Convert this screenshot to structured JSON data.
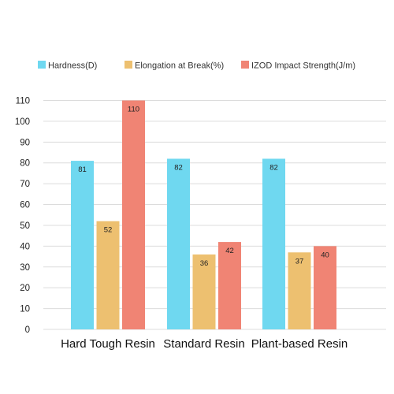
{
  "chart_data": {
    "type": "bar",
    "categories": [
      "Hard Tough Resin",
      "Standard Resin",
      "Plant-based Resin"
    ],
    "series": [
      {
        "name": "Hardness(D)",
        "color": "#6fd8f0",
        "values": [
          81,
          82,
          82
        ]
      },
      {
        "name": "Elongation at Break(%)",
        "color": "#edc070",
        "values": [
          52,
          36,
          37
        ]
      },
      {
        "name": "IZOD Impact Strength(J/m)",
        "color": "#f08474",
        "values": [
          110,
          42,
          40
        ]
      }
    ],
    "yticks": [
      "0",
      "10",
      "20",
      "30",
      "40",
      "50",
      "60",
      "70",
      "80",
      "90",
      "100",
      "110"
    ],
    "ylim": [
      0,
      110
    ],
    "grid": true,
    "legend_position": "top"
  }
}
